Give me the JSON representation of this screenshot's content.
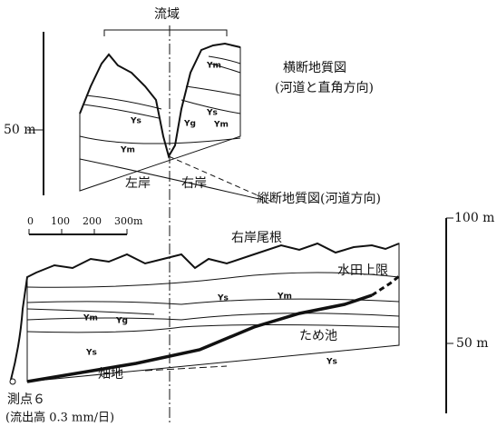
{
  "cross_section": {
    "basin_label": "流域",
    "title": "横断地質図",
    "subtitle": "(河道と直角方向)",
    "scale_label": "50 m",
    "units": [
      "Ym",
      "Ys",
      "Yg",
      "Ym",
      "Ys",
      "Ym"
    ],
    "left_bank": "左岸",
    "right_bank": "右岸"
  },
  "longitudinal_section": {
    "title": "縦断地質図(河道方向)",
    "scale_bar": [
      "0",
      "100",
      "200",
      "300m"
    ],
    "ridge_label": "右岸尾根",
    "paddy_limit": "水田上限",
    "scale_top": "100 m",
    "scale_mid": "50 m",
    "units": [
      "Ym",
      "Ys",
      "Ym",
      "Yg",
      "Ys",
      "Ys"
    ],
    "pond": "ため池",
    "field": "畑地",
    "station": "測点６",
    "station_note": "(流出高 0.3 mm/日)"
  }
}
